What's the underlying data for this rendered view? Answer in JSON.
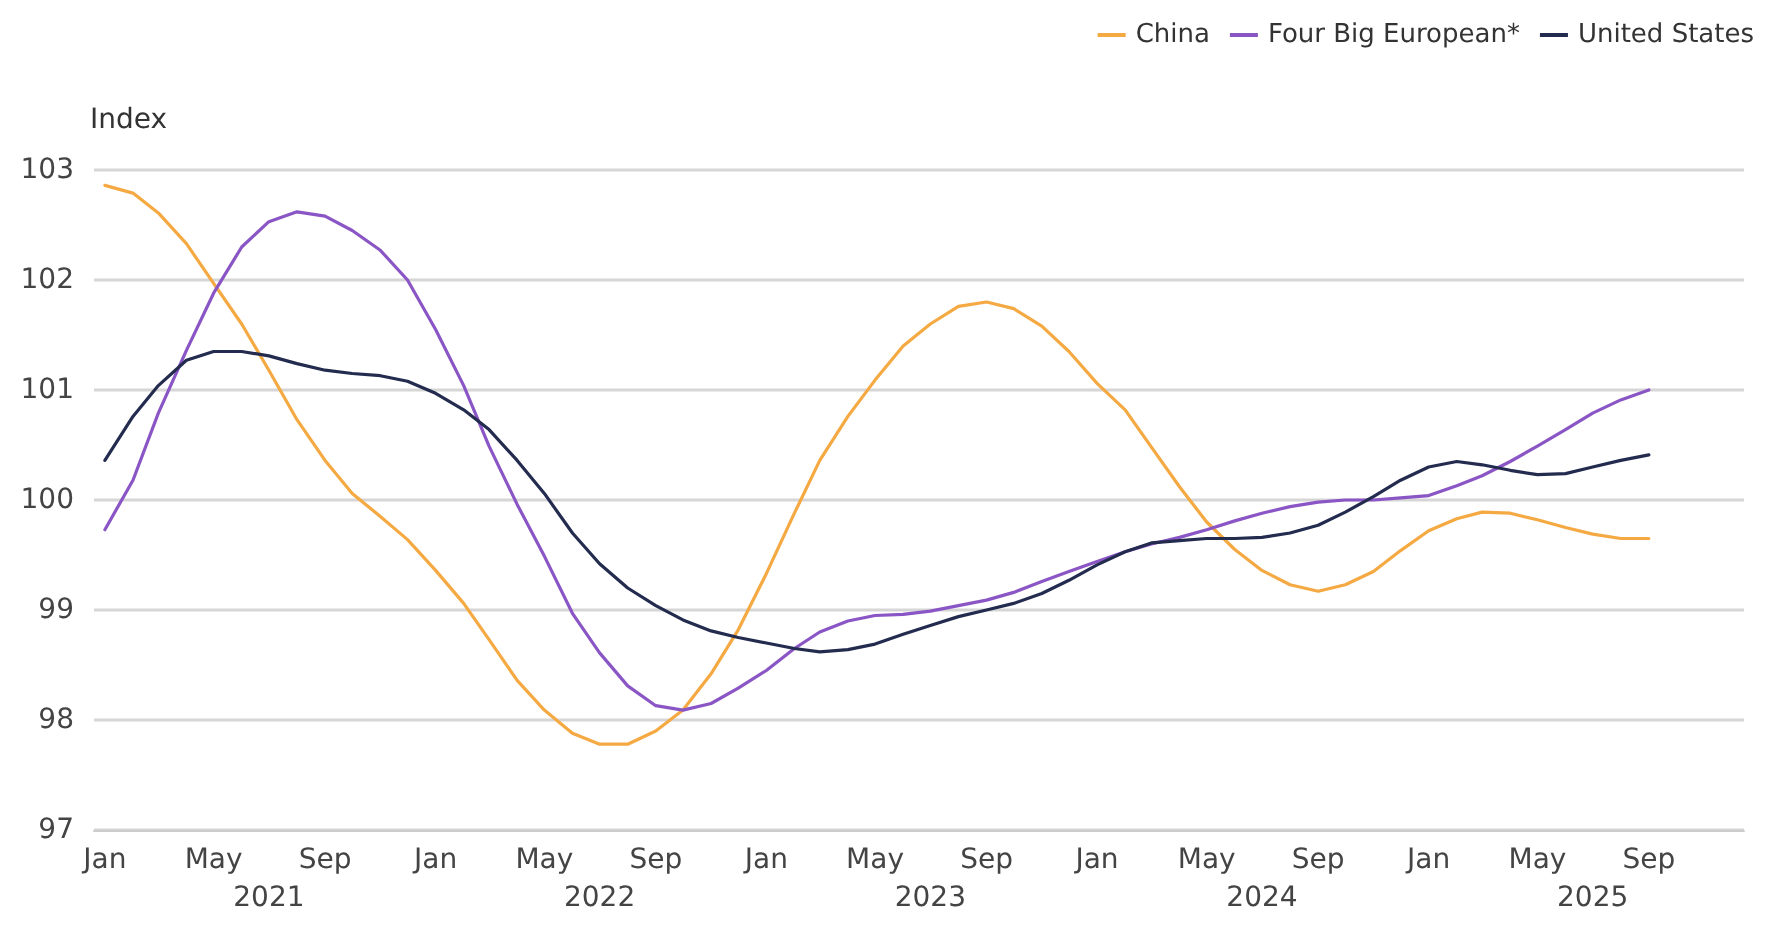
{
  "chart_data": {
    "type": "line",
    "ylabel": "Index",
    "x": [
      "2021-01",
      "2021-02",
      "2021-03",
      "2021-04",
      "2021-05",
      "2021-06",
      "2021-07",
      "2021-08",
      "2021-09",
      "2021-10",
      "2021-11",
      "2021-12",
      "2022-01",
      "2022-02",
      "2022-03",
      "2022-04",
      "2022-05",
      "2022-06",
      "2022-07",
      "2022-08",
      "2022-09",
      "2022-10",
      "2022-11",
      "2022-12",
      "2023-01",
      "2023-02",
      "2023-03",
      "2023-04",
      "2023-05",
      "2023-06",
      "2023-07",
      "2023-08",
      "2023-09",
      "2023-10",
      "2023-11",
      "2023-12",
      "2024-01",
      "2024-02",
      "2024-03",
      "2024-04",
      "2024-05",
      "2024-06",
      "2024-07",
      "2024-08",
      "2024-09",
      "2024-10",
      "2024-11",
      "2024-12",
      "2025-01",
      "2025-02",
      "2025-03",
      "2025-04",
      "2025-05",
      "2025-06",
      "2025-07",
      "2025-08",
      "2025-09"
    ],
    "series": [
      {
        "name": "China",
        "color": "#f5a942",
        "values": [
          102.86,
          102.79,
          102.61,
          102.33,
          101.97,
          101.6,
          101.18,
          100.73,
          100.36,
          100.06,
          99.85,
          99.64,
          99.36,
          99.06,
          98.73,
          98.36,
          98.09,
          97.88,
          97.78,
          97.78,
          97.9,
          98.09,
          98.42,
          98.82,
          99.33,
          99.88,
          100.36,
          100.76,
          101.09,
          101.4,
          101.6,
          101.76,
          101.8,
          101.74,
          101.58,
          101.35,
          101.06,
          100.82,
          100.48,
          100.12,
          99.8,
          99.55,
          99.36,
          99.23,
          99.17,
          99.23,
          99.35,
          99.54,
          99.72,
          99.83,
          99.89,
          99.88,
          99.82,
          99.75,
          99.69,
          99.65,
          99.65
        ]
      },
      {
        "name": "Four Big European*",
        "color": "#8a55c4",
        "values": [
          99.73,
          100.18,
          100.79,
          101.36,
          101.88,
          102.3,
          102.53,
          102.62,
          102.58,
          102.45,
          102.27,
          102.0,
          101.55,
          101.04,
          100.49,
          99.96,
          99.49,
          98.97,
          98.61,
          98.31,
          98.13,
          98.09,
          98.15,
          98.29,
          98.45,
          98.65,
          98.8,
          98.9,
          98.95,
          98.96,
          98.99,
          99.04,
          99.09,
          99.16,
          99.26,
          99.35,
          99.44,
          99.53,
          99.6,
          99.66,
          99.73,
          99.81,
          99.88,
          99.94,
          99.98,
          100.0,
          100.0,
          100.02,
          100.04,
          100.13,
          100.22,
          100.35,
          100.49,
          100.64,
          100.79,
          100.91,
          101.0
        ]
      },
      {
        "name": "United States",
        "color": "#232b4f",
        "values": [
          100.36,
          100.76,
          101.04,
          101.27,
          101.35,
          101.35,
          101.31,
          101.24,
          101.18,
          101.15,
          101.13,
          101.08,
          100.97,
          100.82,
          100.64,
          100.36,
          100.06,
          99.7,
          99.42,
          99.2,
          99.04,
          98.91,
          98.81,
          98.75,
          98.7,
          98.65,
          98.62,
          98.64,
          98.69,
          98.78,
          98.86,
          98.94,
          99.0,
          99.06,
          99.15,
          99.27,
          99.41,
          99.53,
          99.61,
          99.63,
          99.65,
          99.65,
          99.66,
          99.7,
          99.77,
          99.89,
          100.03,
          100.18,
          100.3,
          100.35,
          100.32,
          100.27,
          100.23,
          100.24,
          100.3,
          100.36,
          100.41
        ]
      }
    ],
    "xlim": [
      "2020-12-20",
      "2025-12-15"
    ],
    "xticks": [
      {
        "value": "2021-01",
        "label": "Jan"
      },
      {
        "value": "2021-05",
        "label": "May"
      },
      {
        "value": "2021-09",
        "label": "Sep"
      },
      {
        "value": "2022-01",
        "label": "Jan"
      },
      {
        "value": "2022-05",
        "label": "May"
      },
      {
        "value": "2022-09",
        "label": "Sep"
      },
      {
        "value": "2023-01",
        "label": "Jan"
      },
      {
        "value": "2023-05",
        "label": "May"
      },
      {
        "value": "2023-09",
        "label": "Sep"
      },
      {
        "value": "2024-01",
        "label": "Jan"
      },
      {
        "value": "2024-05",
        "label": "May"
      },
      {
        "value": "2024-09",
        "label": "Sep"
      },
      {
        "value": "2025-01",
        "label": "Jan"
      },
      {
        "value": "2025-05",
        "label": "May"
      },
      {
        "value": "2025-09",
        "label": "Sep"
      }
    ],
    "x2lim": [
      "2020-12-20",
      "2025-12-15"
    ],
    "x2ticks": [
      {
        "value": "2021-07",
        "label": "2021"
      },
      {
        "value": "2022-07",
        "label": "2022"
      },
      {
        "value": "2023-07",
        "label": "2023"
      },
      {
        "value": "2024-07",
        "label": "2024"
      },
      {
        "value": "2025-07",
        "label": "2025"
      }
    ],
    "ylim": [
      97,
      103
    ],
    "yticks": [
      97,
      98,
      99,
      100,
      101,
      102,
      103
    ],
    "grid": "y",
    "legend": "top right",
    "marker": "none",
    "line_style": "solid"
  }
}
